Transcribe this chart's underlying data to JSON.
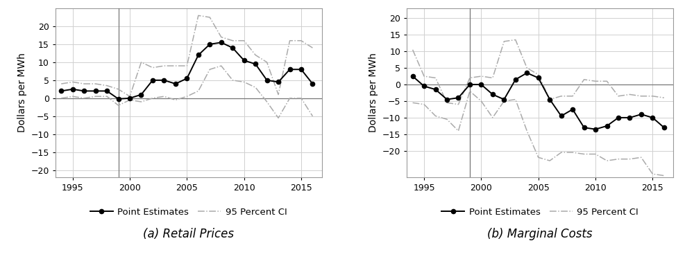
{
  "retail_years": [
    1994,
    1995,
    1996,
    1997,
    1998,
    1999,
    2000,
    2001,
    2002,
    2003,
    2004,
    2005,
    2006,
    2007,
    2008,
    2009,
    2010,
    2011,
    2012,
    2013,
    2014,
    2015,
    2016
  ],
  "retail_point": [
    2.0,
    2.5,
    2.0,
    2.0,
    2.0,
    -0.2,
    0.0,
    1.0,
    5.0,
    5.0,
    4.0,
    5.5,
    12.0,
    15.0,
    15.5,
    14.0,
    10.5,
    9.5,
    5.0,
    4.5,
    8.0,
    8.0,
    4.0
  ],
  "retail_ci_upper": [
    4.0,
    4.5,
    4.0,
    4.0,
    3.5,
    2.5,
    0.5,
    10.0,
    8.5,
    9.0,
    9.0,
    9.0,
    23.0,
    22.5,
    17.0,
    16.0,
    16.0,
    12.0,
    10.0,
    1.0,
    16.0,
    16.0,
    14.0
  ],
  "retail_ci_lower": [
    0.0,
    0.5,
    0.0,
    0.5,
    0.5,
    -2.0,
    -0.5,
    -1.0,
    0.0,
    0.5,
    -0.5,
    0.5,
    2.0,
    8.0,
    9.0,
    5.0,
    4.5,
    3.0,
    -1.0,
    -5.5,
    0.0,
    0.0,
    -5.0
  ],
  "retail_vline": 1999,
  "retail_ylim": [
    -22,
    25
  ],
  "retail_yticks": [
    -20,
    -15,
    -10,
    -5,
    0,
    5,
    10,
    15,
    20
  ],
  "retail_title": "(a) Retail Prices",
  "mc_years": [
    1994,
    1995,
    1996,
    1997,
    1998,
    1999,
    2000,
    2001,
    2002,
    2003,
    2004,
    2005,
    2006,
    2007,
    2008,
    2009,
    2010,
    2011,
    2012,
    2013,
    2014,
    2015,
    2016
  ],
  "mc_point": [
    2.5,
    -0.5,
    -1.5,
    -4.5,
    -4.0,
    0.0,
    0.0,
    -3.0,
    -4.5,
    1.5,
    3.5,
    2.0,
    -4.5,
    -9.5,
    -7.5,
    -13.0,
    -13.5,
    -12.5,
    -10.0,
    -10.0,
    -9.0,
    -10.0,
    -13.0
  ],
  "mc_ci_upper": [
    10.5,
    2.5,
    2.0,
    -5.5,
    -6.0,
    2.0,
    2.5,
    2.0,
    13.0,
    13.5,
    5.0,
    3.0,
    -4.5,
    -3.5,
    -3.5,
    1.5,
    1.0,
    1.0,
    -3.5,
    -3.0,
    -3.5,
    -3.5,
    -4.0
  ],
  "mc_ci_lower": [
    -5.5,
    -6.0,
    -9.5,
    -10.5,
    -14.0,
    -2.0,
    -5.0,
    -10.0,
    -5.0,
    -4.5,
    -14.0,
    -22.0,
    -23.0,
    -20.5,
    -20.5,
    -21.0,
    -21.0,
    -23.0,
    -22.5,
    -22.5,
    -22.0,
    -27.0,
    -27.5
  ],
  "mc_vline": 1999,
  "mc_ylim": [
    -28,
    23
  ],
  "mc_yticks": [
    -20,
    -15,
    -10,
    -5,
    0,
    5,
    10,
    15,
    20
  ],
  "mc_title": "(b) Marginal Costs",
  "ylabel": "Dollars per MWh",
  "legend_point": "Point Estimates",
  "legend_ci": "95 Percent CI",
  "point_color": "#000000",
  "ci_color": "#aaaaaa",
  "vline_color": "#777777",
  "hline_color": "#777777",
  "grid_color": "#d0d0d0",
  "bg_color": "#ffffff",
  "fig_bg_color": "#ffffff",
  "title_fontsize": 12,
  "label_fontsize": 10,
  "tick_fontsize": 9,
  "legend_fontsize": 9.5,
  "subfig_label_fontsize": 12
}
